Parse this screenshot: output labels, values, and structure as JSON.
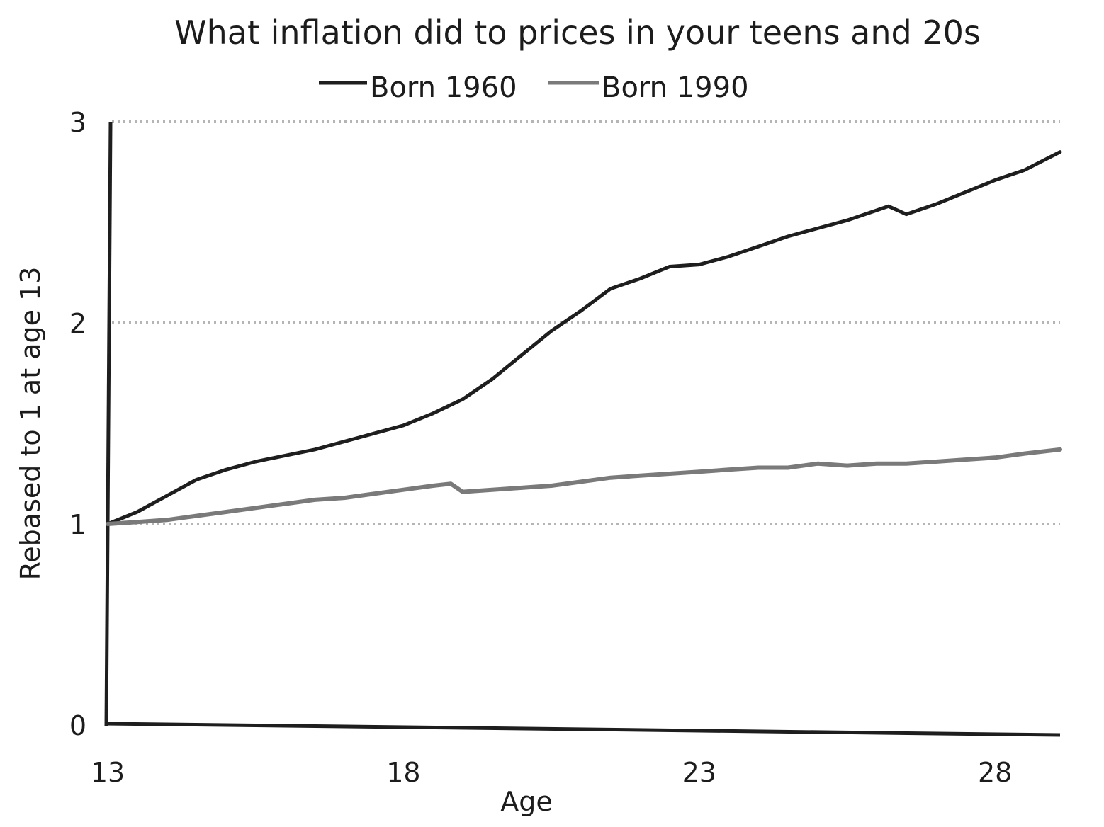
{
  "chart_data": {
    "type": "line",
    "title": "What inflation did to prices in your teens and 20s",
    "xlabel": "Age",
    "ylabel": "Rebased to 1 at age 13",
    "xlim": [
      13,
      29.1
    ],
    "ylim": [
      0,
      3
    ],
    "x_ticks": [
      "13",
      "18",
      "23",
      "28"
    ],
    "x_tick_values": [
      13,
      18,
      23,
      28
    ],
    "y_ticks": [
      "0",
      "1",
      "2",
      "3"
    ],
    "y_tick_values": [
      0,
      1,
      2,
      3
    ],
    "grid": "horizontal dotted at 1, 2, 3",
    "legend_position": "top-center",
    "colors": {
      "born_1960": "#1e1e1e",
      "born_1990": "#7a7a7a",
      "grid": "#b5b5b5",
      "axis": "#1e1e1e"
    },
    "series": [
      {
        "name": "Born 1960",
        "x": [
          13,
          13.5,
          14,
          14.5,
          15,
          15.5,
          16,
          16.5,
          17,
          17.5,
          18,
          18.5,
          19,
          19.5,
          20,
          20.5,
          21,
          21.5,
          22,
          22.5,
          23,
          23.5,
          24,
          24.5,
          25,
          25.5,
          26,
          26.2,
          26.5,
          27,
          27.5,
          28,
          28.5,
          29.1
        ],
        "y": [
          1.0,
          1.06,
          1.14,
          1.22,
          1.27,
          1.31,
          1.34,
          1.37,
          1.41,
          1.45,
          1.49,
          1.55,
          1.62,
          1.72,
          1.84,
          1.96,
          2.06,
          2.17,
          2.22,
          2.28,
          2.29,
          2.33,
          2.38,
          2.43,
          2.47,
          2.51,
          2.56,
          2.58,
          2.54,
          2.59,
          2.65,
          2.71,
          2.76,
          2.85
        ]
      },
      {
        "name": "Born 1990",
        "x": [
          13,
          13.5,
          14,
          14.5,
          15,
          15.5,
          16,
          16.5,
          17,
          17.5,
          18,
          18.5,
          18.8,
          19,
          19.5,
          20,
          20.5,
          21,
          21.5,
          22,
          22.5,
          23,
          23.5,
          24,
          24.5,
          25,
          25.5,
          26,
          26.5,
          27,
          27.5,
          28,
          28.5,
          29.1
        ],
        "y": [
          1.0,
          1.01,
          1.02,
          1.04,
          1.06,
          1.08,
          1.1,
          1.12,
          1.13,
          1.15,
          1.17,
          1.19,
          1.2,
          1.16,
          1.17,
          1.18,
          1.19,
          1.21,
          1.23,
          1.24,
          1.25,
          1.26,
          1.27,
          1.28,
          1.28,
          1.3,
          1.29,
          1.3,
          1.3,
          1.31,
          1.32,
          1.33,
          1.35,
          1.37
        ]
      }
    ]
  }
}
